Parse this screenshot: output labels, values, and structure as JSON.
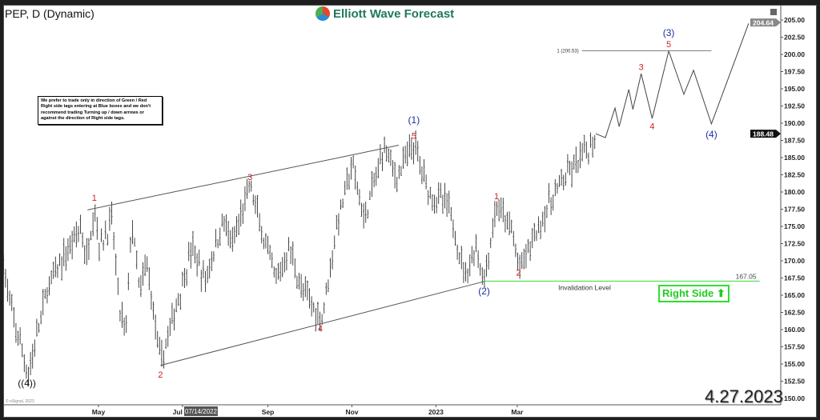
{
  "header": {
    "title": "PEP, D (Dynamic)",
    "brand": "Elliott Wave Forecast",
    "date_stamp": "4.27.2023",
    "copyright": "© eSignal, 2023"
  },
  "note": "We prefer to trade only in direction of Green / Red Right side tags entering at Blue boxes and we don't recommend trading Turning up / down arrows or against the direction of Right side tags.",
  "right_side_tag": {
    "label": "Right Side",
    "icon": "arrow-up-icon",
    "color": "#22cc22"
  },
  "chart_data": {
    "type": "ohlc",
    "symbol": "PEP",
    "interval": "D",
    "ylim": [
      150,
      205
    ],
    "yticks": [
      "205.00",
      "202.50",
      "200.00",
      "197.50",
      "195.00",
      "192.50",
      "190.00",
      "187.50",
      "185.00",
      "182.50",
      "180.00",
      "177.50",
      "175.00",
      "172.50",
      "170.00",
      "167.50",
      "165.00",
      "162.50",
      "160.00",
      "157.50",
      "155.00",
      "152.50",
      "150.00"
    ],
    "xticks": [
      {
        "label": "May",
        "date": "2022-05-01"
      },
      {
        "label": "Jul",
        "date": "2022-07-01"
      },
      {
        "label": "Sep",
        "date": "2022-09-01"
      },
      {
        "label": "Nov",
        "date": "2022-11-01"
      },
      {
        "label": "2023",
        "date": "2023-01-01"
      },
      {
        "label": "Mar",
        "date": "2023-03-01"
      }
    ],
    "cursor_date": "07/14/2022",
    "last_price": "188.48",
    "projection_high_tag": "204.64",
    "price_path": [
      [
        "2022-02-21",
        170
      ],
      [
        "2022-02-25",
        164
      ],
      [
        "2022-03-11",
        153.5
      ],
      [
        "2022-03-25",
        166
      ],
      [
        "2022-04-18",
        175
      ],
      [
        "2022-04-22",
        170
      ],
      [
        "2022-04-28",
        178
      ],
      [
        "2022-05-02",
        172
      ],
      [
        "2022-05-11",
        176
      ],
      [
        "2022-05-16",
        163
      ],
      [
        "2022-05-21",
        159.5
      ],
      [
        "2022-05-25",
        176
      ],
      [
        "2022-05-31",
        165
      ],
      [
        "2022-06-05",
        170
      ],
      [
        "2022-06-15",
        155
      ],
      [
        "2022-07-08",
        172
      ],
      [
        "2022-07-17",
        167
      ],
      [
        "2022-07-31",
        176
      ],
      [
        "2022-08-06",
        172
      ],
      [
        "2022-08-19",
        181
      ],
      [
        "2022-08-29",
        173
      ],
      [
        "2022-09-07",
        167
      ],
      [
        "2022-09-17",
        172
      ],
      [
        "2022-09-25",
        166
      ],
      [
        "2022-10-10",
        161.5
      ],
      [
        "2022-10-21",
        175
      ],
      [
        "2022-11-01",
        184
      ],
      [
        "2022-11-10",
        176
      ],
      [
        "2022-11-25",
        187
      ],
      [
        "2022-12-03",
        182
      ],
      [
        "2022-12-16",
        187
      ],
      [
        "2022-12-27",
        180
      ],
      [
        "2023-01-10",
        178
      ],
      [
        "2023-01-22",
        168
      ],
      [
        "2023-01-30",
        172
      ],
      [
        "2023-02-05",
        167
      ],
      [
        "2023-02-14",
        178
      ],
      [
        "2023-02-26",
        174
      ],
      [
        "2023-03-02",
        168.5
      ],
      [
        "2023-03-21",
        177
      ],
      [
        "2023-04-01",
        181
      ],
      [
        "2023-04-13",
        184
      ],
      [
        "2023-04-25",
        187
      ],
      [
        "2023-04-27",
        188.48
      ]
    ],
    "projection": [
      [
        "2023-05-04",
        187.9
      ],
      [
        "2023-05-11",
        192.2
      ],
      [
        "2023-05-14",
        189.5
      ],
      [
        "2023-05-21",
        194.9
      ],
      [
        "2023-05-24",
        192
      ],
      [
        "2023-05-30",
        197.2
      ],
      [
        "2023-06-07",
        190.7
      ],
      [
        "2023-06-19",
        200.5
      ],
      [
        "2023-06-30",
        194.2
      ],
      [
        "2023-07-07",
        197.7
      ],
      [
        "2023-07-20",
        189.9
      ],
      [
        "2023-08-16",
        204.5
      ]
    ],
    "channel_lines": [
      {
        "from": [
          "2022-04-23",
          177.4
        ],
        "to": [
          "2022-12-05",
          186.8
        ]
      },
      {
        "from": [
          "2022-06-15",
          154.8
        ],
        "to": [
          "2023-02-05",
          167
        ]
      }
    ],
    "fib_level": {
      "label": "1 (200.53)",
      "price": 200.53,
      "from": "2023-04-17",
      "to": "2023-07-20"
    },
    "invalidation": {
      "label": "Invalidation Level",
      "value_label": "167.05",
      "price": 167.05,
      "from": "2023-02-05",
      "to": "2023-08-24",
      "color": "#33dd33"
    },
    "wave_labels": [
      {
        "text": "((4))",
        "date": "2022-03-10",
        "price": 152.2,
        "color": "#111111"
      },
      {
        "text": "1",
        "date": "2022-04-28",
        "price": 179.2,
        "color": "#cc2222"
      },
      {
        "text": "2",
        "date": "2022-06-15",
        "price": 153.5,
        "color": "#cc2222"
      },
      {
        "text": "3",
        "date": "2022-08-19",
        "price": 182.2,
        "color": "#cc2222"
      },
      {
        "text": "4",
        "date": "2022-10-09",
        "price": 160.2,
        "color": "#cc2222"
      },
      {
        "text": "5",
        "date": "2022-12-16",
        "price": 188.2,
        "color": "#cc2222"
      },
      {
        "text": "(1)",
        "date": "2022-12-16",
        "price": 190.1,
        "color": "#1a2ea8"
      },
      {
        "text": "(2)",
        "date": "2023-02-05",
        "price": 165.6,
        "color": "#1a2ea8"
      },
      {
        "text": "1",
        "date": "2023-02-14",
        "price": 179.4,
        "color": "#cc2222"
      },
      {
        "text": "2",
        "date": "2023-03-02",
        "price": 168.3,
        "color": "#cc2222"
      },
      {
        "text": "3",
        "date": "2023-05-30",
        "price": 198.2,
        "color": "#cc2222"
      },
      {
        "text": "4",
        "date": "2023-06-07",
        "price": 189.6,
        "color": "#cc2222"
      },
      {
        "text": "5",
        "date": "2023-06-19",
        "price": 201.5,
        "color": "#cc2222"
      },
      {
        "text": "(3)",
        "date": "2023-06-19",
        "price": 202.8,
        "color": "#1a2ea8"
      },
      {
        "text": "(4)",
        "date": "2023-07-20",
        "price": 188.4,
        "color": "#1a2ea8"
      }
    ]
  }
}
